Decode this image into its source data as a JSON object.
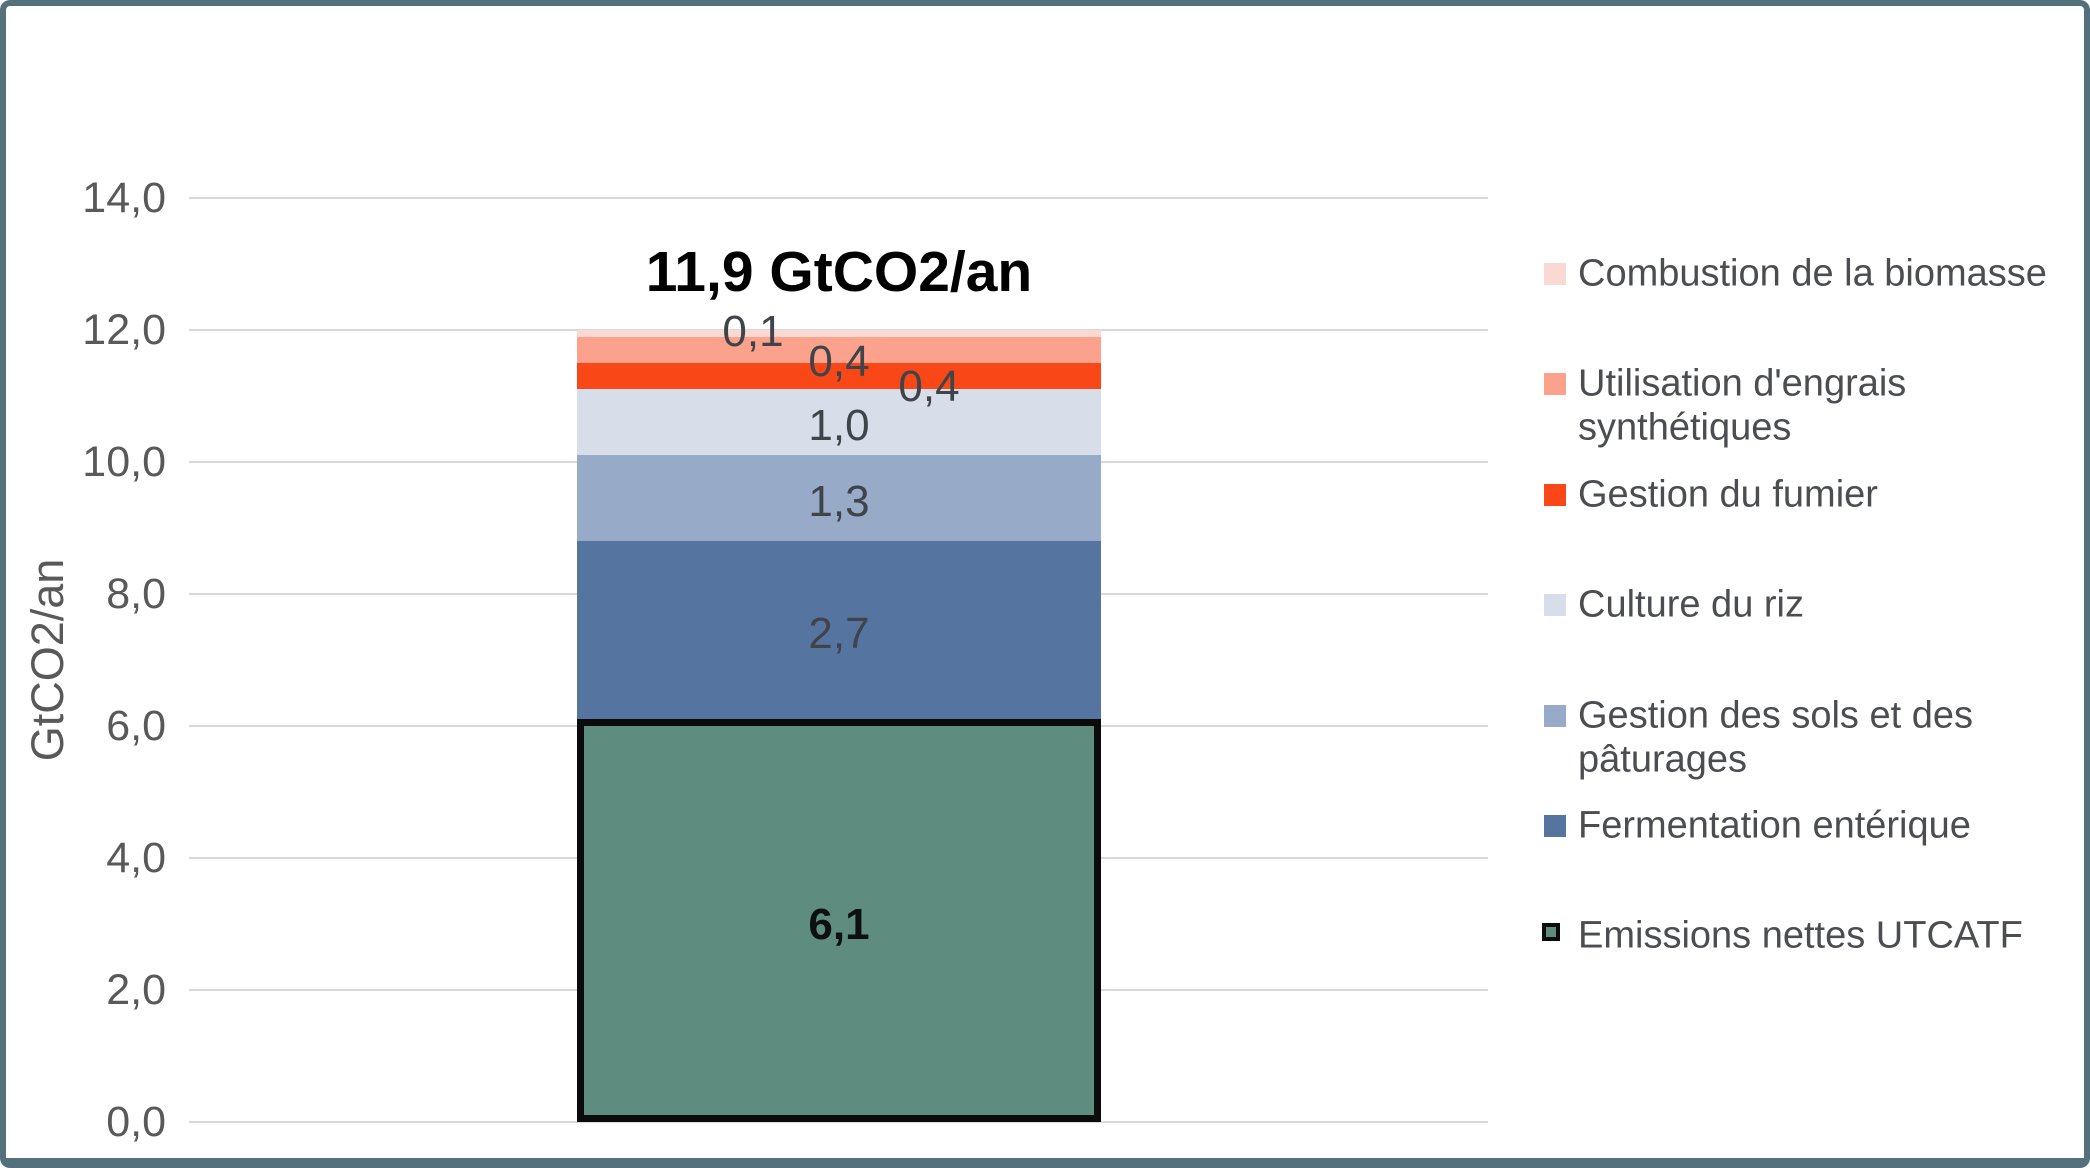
{
  "chart_data": {
    "type": "bar",
    "subtype": "stacked-single-column",
    "title": "11,9 GtCO2/an",
    "ylabel": "GtCO2/an",
    "ylim": [
      0,
      14
    ],
    "ytick_step": 2,
    "ytick_labels": [
      "0,0",
      "2,0",
      "4,0",
      "6,0",
      "8,0",
      "10,0",
      "12,0",
      "14,0"
    ],
    "grid": true,
    "legend_position": "right",
    "total_value": 11.9,
    "series": [
      {
        "name": "Emissions nettes UTCATF",
        "value": 6.1,
        "label": "6,1",
        "color": "#5e8c7e",
        "border_color": "#0b0b0b"
      },
      {
        "name": "Fermentation entérique",
        "value": 2.7,
        "label": "2,7",
        "color": "#5674a0"
      },
      {
        "name": "Gestion des sols et des pâturages",
        "value": 1.3,
        "label": "1,3",
        "color": "#97abc8"
      },
      {
        "name": "Culture du riz",
        "value": 1.0,
        "label": "1,0",
        "color": "#d7dde9"
      },
      {
        "name": "Gestion du fumier",
        "value": 0.4,
        "label": "0,4",
        "color": "#f94718"
      },
      {
        "name": "Utilisation d'engrais synthétiques",
        "value": 0.4,
        "label": "0,4",
        "color": "#fba18c"
      },
      {
        "name": "Combustion de la biomasse",
        "value": 0.1,
        "label": "0,1",
        "color": "#fbd9d3"
      }
    ],
    "legend": [
      {
        "lines": [
          "Combustion de la biomasse"
        ],
        "color": "#fbd9d3"
      },
      {
        "lines": [
          "Utilisation d'engrais",
          "synthétiques"
        ],
        "color": "#fba18c"
      },
      {
        "lines": [
          "Gestion du fumier"
        ],
        "color": "#f94718"
      },
      {
        "lines": [
          "Culture du riz"
        ],
        "color": "#d7dde9"
      },
      {
        "lines": [
          "Gestion des sols et des",
          "pâturages"
        ],
        "color": "#97abc8"
      },
      {
        "lines": [
          "Fermentation entérique"
        ],
        "color": "#5674a0"
      },
      {
        "lines": [
          "Emissions nettes UTCATF"
        ],
        "color": "#5e8c7e",
        "border_color": "#0b0b0b"
      }
    ],
    "colors": {
      "gridline": "#d9d9d9",
      "axis_text": "#595959",
      "data_label_text": "#3f444b",
      "frame_border": "#53707c"
    }
  }
}
